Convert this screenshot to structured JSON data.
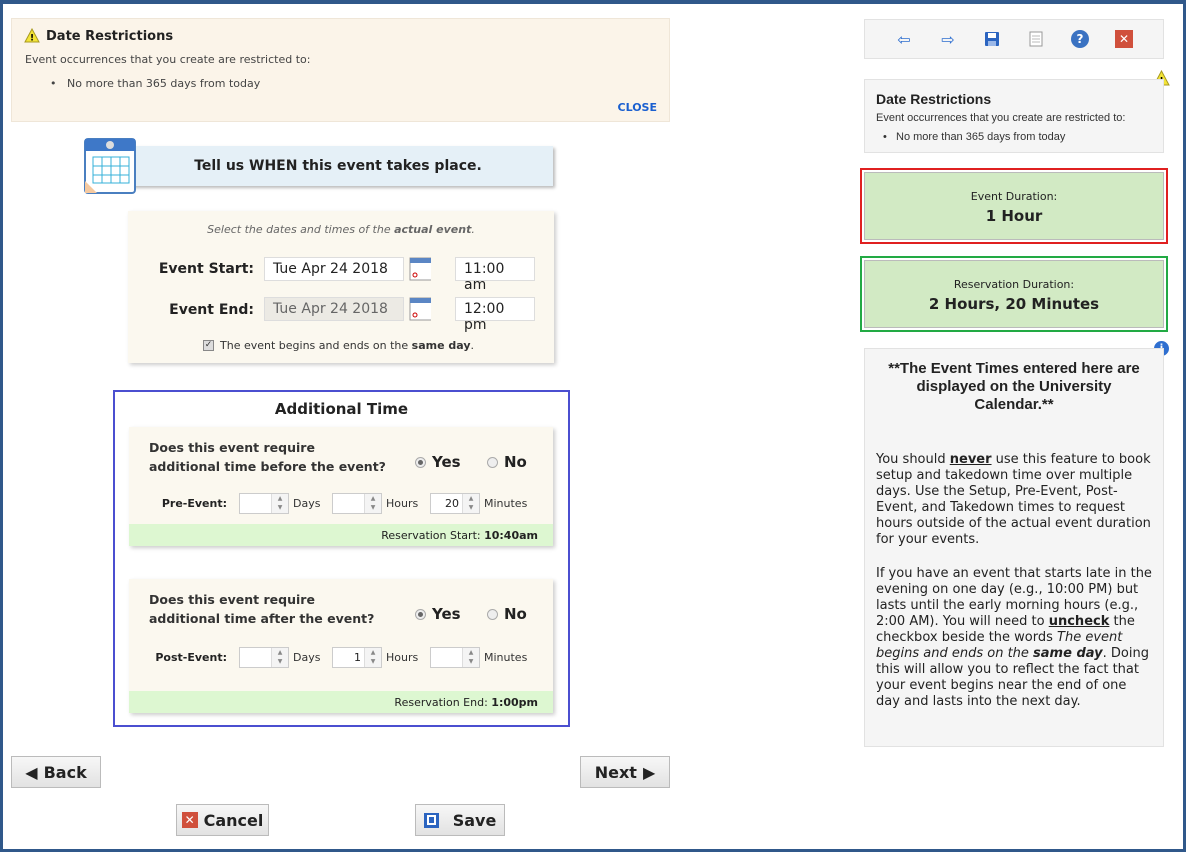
{
  "notice": {
    "title": "Date Restrictions",
    "text": "Event occurrences that you create are restricted to:",
    "item": "No more than 365 days from today",
    "close": "CLOSE"
  },
  "banner": {
    "title": "Tell us WHEN this event takes place."
  },
  "dates": {
    "hint_pre": "Select the dates and times of the ",
    "hint_bold": "actual event",
    "hint_post": ".",
    "start_label": "Event Start:",
    "start_date": "Tue Apr 24 2018",
    "start_time": "11:00 am",
    "end_label": "Event End:",
    "end_date": "Tue Apr 24 2018",
    "end_time": "12:00 pm",
    "same_day_pre": "The event begins and ends on the ",
    "same_day_bold": "same day",
    "same_day_post": ".",
    "same_day_checked": true
  },
  "additional": {
    "title": "Additional Time",
    "before": {
      "q1": "Does this event require",
      "q2": "additional time before the event?",
      "yes": "Yes",
      "no": "No",
      "selected": "Yes",
      "label": "Pre-Event:",
      "days": "",
      "hours": "",
      "minutes": "20",
      "units": [
        "Days",
        "Hours",
        "Minutes"
      ],
      "res_label": "Reservation Start:",
      "res_value": "10:40am"
    },
    "after": {
      "q1": "Does this event require",
      "q2": "additional time after the event?",
      "yes": "Yes",
      "no": "No",
      "selected": "Yes",
      "label": "Post-Event:",
      "days": "",
      "hours": "1",
      "minutes": "",
      "units": [
        "Days",
        "Hours",
        "Minutes"
      ],
      "res_label": "Reservation End:",
      "res_value": "1:00pm"
    }
  },
  "buttons": {
    "back": "Back",
    "next": "Next",
    "cancel": "Cancel",
    "save": "Save"
  },
  "toolbar": [
    "arrow-left-icon",
    "arrow-right-icon",
    "save-icon",
    "document-icon",
    "help-icon",
    "close-icon"
  ],
  "right_notice": {
    "title": "Date Restrictions",
    "text": "Event occurrences that you create are restricted to:",
    "item": "No more than 365 days from today"
  },
  "event_duration": {
    "label": "Event Duration:",
    "value": "1 Hour",
    "border": "#e02020"
  },
  "reservation_duration": {
    "label": "Reservation Duration:",
    "value": "2 Hours, 20 Minutes",
    "border": "#22aa44"
  },
  "info": {
    "heading": "**The Event Times entered here are displayed on the University Calendar.**",
    "p1_a": "You should ",
    "p1_b": "never",
    "p1_c": " use this feature to book setup and takedown time over multiple days. Use the Setup, Pre-Event, Post-Event, and Takedown times to request hours outside of the actual event duration for your events.",
    "p2_a": "If you have an event that starts late in the evening on one day (e.g., 10:00 PM) but lasts until the early morning hours (e.g., 2:00 AM). You will need to ",
    "p2_b": "uncheck",
    "p2_c": " the checkbox beside the words ",
    "p2_d": "The event begins and ends on the ",
    "p2_e": "same day",
    "p2_f": ". Doing this will allow you to reflect the fact that your event begins near the end of one day and lasts into the next day."
  }
}
